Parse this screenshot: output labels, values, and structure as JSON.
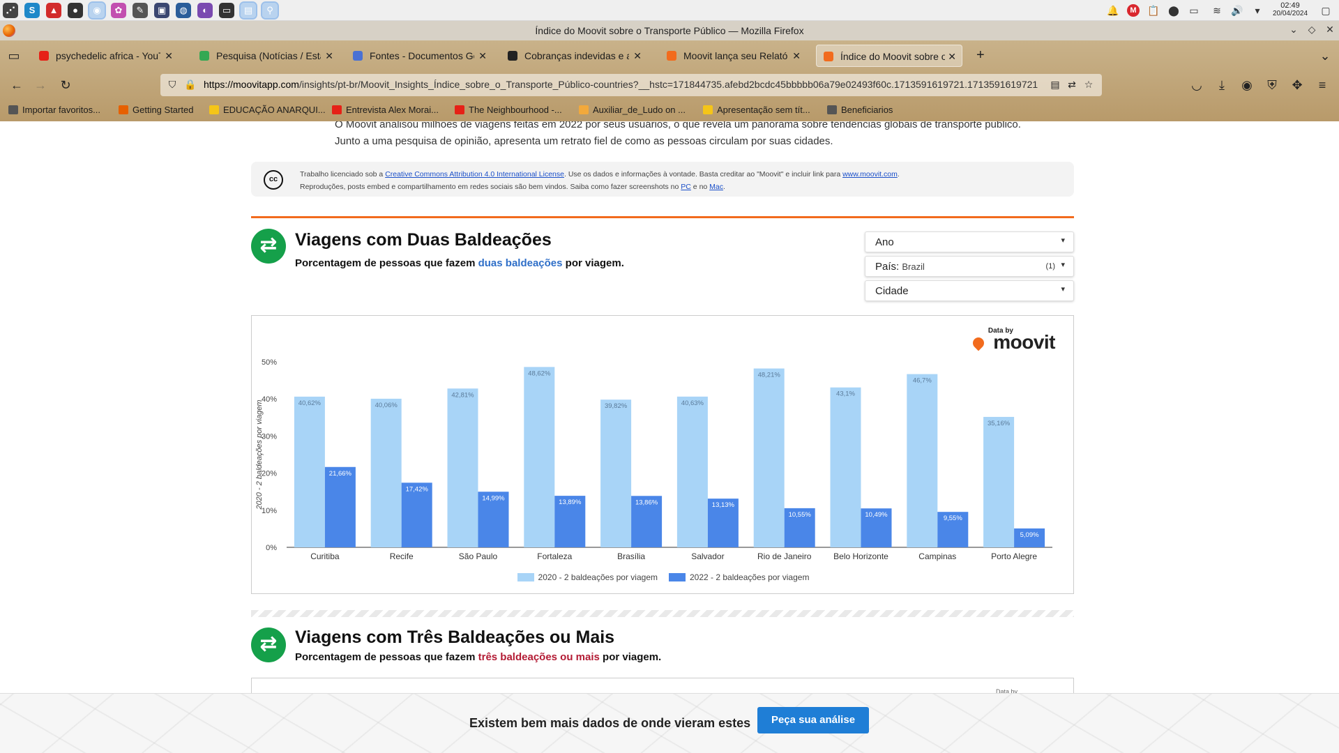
{
  "taskbar": {
    "apps": [
      {
        "name": "app-launcher-icon",
        "glyph": "⋰",
        "color": "#444444",
        "active": false
      },
      {
        "name": "skype-icon",
        "glyph": "S",
        "color": "#1e88c9",
        "active": false
      },
      {
        "name": "red-triangle-app-icon",
        "glyph": "▲",
        "color": "#d22c2c",
        "active": false
      },
      {
        "name": "obs-icon",
        "glyph": "●",
        "color": "#333333",
        "active": false
      },
      {
        "name": "firefox-icon",
        "glyph": "◉",
        "color": "#e66000",
        "active": true
      },
      {
        "name": "krita-icon",
        "glyph": "✿",
        "color": "#c24fb0",
        "active": false
      },
      {
        "name": "inkscape-icon",
        "glyph": "✎",
        "color": "#555555",
        "active": false
      },
      {
        "name": "image-editor-icon",
        "glyph": "▣",
        "color": "#3a4670",
        "active": false
      },
      {
        "name": "browser-blue-icon",
        "glyph": "◍",
        "color": "#2a5d9a",
        "active": false
      },
      {
        "name": "color-picker-icon",
        "glyph": "◐",
        "color": "#7a4ab0",
        "active": false
      },
      {
        "name": "terminal-icon",
        "glyph": "▭",
        "color": "#333333",
        "active": false
      },
      {
        "name": "file-manager-icon",
        "glyph": "▤",
        "color": "#3b7fc4",
        "active": true
      },
      {
        "name": "keepass-icon",
        "glyph": "⚲",
        "color": "#5aa335",
        "active": true
      }
    ],
    "tray": [
      {
        "name": "notifications-icon",
        "glyph": "🔔"
      },
      {
        "name": "mega-icon",
        "glyph": "M"
      },
      {
        "name": "clipboard-icon",
        "glyph": "📋"
      },
      {
        "name": "pin-icon",
        "glyph": "⬤"
      },
      {
        "name": "battery-icon",
        "glyph": "▭"
      },
      {
        "name": "wifi-icon",
        "glyph": "≋"
      },
      {
        "name": "volume-icon",
        "glyph": "🔊"
      },
      {
        "name": "tray-expand-icon",
        "glyph": "▾"
      },
      {
        "name": "desktop-icon",
        "glyph": "▢"
      }
    ],
    "clock_time": "02:49",
    "clock_date": "20/04/2024"
  },
  "window": {
    "title": "Índice do Moovit sobre o Transporte Público — Mozilla Firefox"
  },
  "tabs": [
    {
      "label": "psychedelic africa - YouTube",
      "fav_color": "#e62117",
      "active": false
    },
    {
      "label": "Pesquisa (Notícias / Estatísticas)",
      "fav_color": "#34a853",
      "active": false
    },
    {
      "label": "Fontes - Documentos Google",
      "fav_color": "#4a71d4",
      "active": false
    },
    {
      "label": "Cobranças indevidas e atrasos",
      "fav_color": "#222222",
      "active": false
    },
    {
      "label": "Moovit lança seu Relatório",
      "fav_color": "#f26b1d",
      "active": false
    },
    {
      "label": "Índice do Moovit sobre o T",
      "fav_color": "#f26b1d",
      "active": true
    }
  ],
  "url": {
    "host": "https://moovitapp.com",
    "path": "/insights/pt-br/Moovit_Insights_Índice_sobre_o_Transporte_Público-countries?__hstc=171844735.afebd2bcdc45bbbbb06a79e02493f60c.1713591619721.1713591619721"
  },
  "bookmarks": [
    {
      "label": "Importar favoritos...",
      "color": "#555555"
    },
    {
      "label": "Getting Started",
      "color": "#e66000"
    },
    {
      "label": "EDUCAÇÃO ANARQUI...",
      "color": "#f5c518"
    },
    {
      "label": "Entrevista Alex Morai...",
      "color": "#e62117"
    },
    {
      "label": "The Neighbourhood -...",
      "color": "#e62117"
    },
    {
      "label": "Auxiliar_de_Ludo on ...",
      "color": "#f2a93b"
    },
    {
      "label": "Apresentação sem tít...",
      "color": "#f5c518"
    },
    {
      "label": "Beneficiarios",
      "color": "#555555"
    }
  ],
  "page": {
    "intro_line1": "O Moovit analisou milhões de viagens feitas em 2022 por seus usuários, o que revela um panorama sobre tendências globais de transporte público.",
    "intro_line2": "Junto a uma pesquisa de opinião, apresenta um retrato fiel de como as pessoas circulam por suas cidades.",
    "license": {
      "pre": "Trabalho licenciado sob a ",
      "link1": "Creative Commons Attribution 4.0 International License",
      "mid": ". Use os dados e informações à vontade. Basta creditar ao \"Moovit\" e incluir link para ",
      "link2": "www.moovit.com",
      "end": ".",
      "line2_pre": "Reproduções, posts embed e compartilhamento em redes sociais são bem vindos. Saiba como fazer screenshots no ",
      "link3": "PC",
      "line2_mid": " e no ",
      "link4": "Mac",
      "line2_end": ".",
      "icon_text": "cc"
    },
    "section1": {
      "title": "Viagens com Duas Baldeações",
      "sub_pre": "Porcentagem de pessoas que fazem ",
      "sub_hl": "duas baldeações",
      "sub_post": " por viagem."
    },
    "filters": {
      "year": "Ano",
      "country_label": "País:",
      "country_value": "Brazil",
      "country_count": "(1)",
      "city": "Cidade",
      "caret": "▾"
    },
    "brand_small": "Data by",
    "brand_big": "moovit",
    "section2": {
      "title": "Viagens com Três Baldeações ou Mais",
      "sub_pre": "Porcentagem de pessoas que fazem ",
      "sub_hl": "três baldeações ou mais",
      "sub_post": " por viagem.",
      "brand_small": "Data by"
    },
    "cta": {
      "text": "Existem bem mais dados de onde vieram estes",
      "button": "Peça sua análise"
    }
  },
  "chart_data": {
    "type": "bar",
    "title": "",
    "ylabel": "2020 - 2 baldeações por viagem",
    "xlabel": "",
    "ylim": [
      0,
      50
    ],
    "yticks": [
      "0%",
      "10%",
      "20%",
      "30%",
      "40%",
      "50%"
    ],
    "grid": false,
    "legend_position": "bottom",
    "categories": [
      "Curitiba",
      "Recife",
      "São Paulo",
      "Fortaleza",
      "Brasília",
      "Salvador",
      "Rio de Janeiro",
      "Belo Horizonte",
      "Campinas",
      "Porto Alegre"
    ],
    "series": [
      {
        "name": "2020 - 2 baldeações por viagem",
        "color": "#a8d4f7",
        "values": [
          40.62,
          40.06,
          42.81,
          48.62,
          39.82,
          40.63,
          48.21,
          43.1,
          46.7,
          35.16
        ],
        "labels": [
          "40,62%",
          "40,06%",
          "42,81%",
          "48,62%",
          "39,82%",
          "40,63%",
          "48,21%",
          "43,1%",
          "46,7%",
          "35,16%"
        ]
      },
      {
        "name": "2022 - 2 baldeações por viagem",
        "color": "#4a86e8",
        "values": [
          21.66,
          17.42,
          14.99,
          13.89,
          13.86,
          13.13,
          10.55,
          10.49,
          9.55,
          5.09
        ],
        "labels": [
          "21,66%",
          "17,42%",
          "14,99%",
          "13,89%",
          "13,86%",
          "13,13%",
          "10,55%",
          "10,49%",
          "9,55%",
          "5,09%"
        ]
      }
    ]
  }
}
